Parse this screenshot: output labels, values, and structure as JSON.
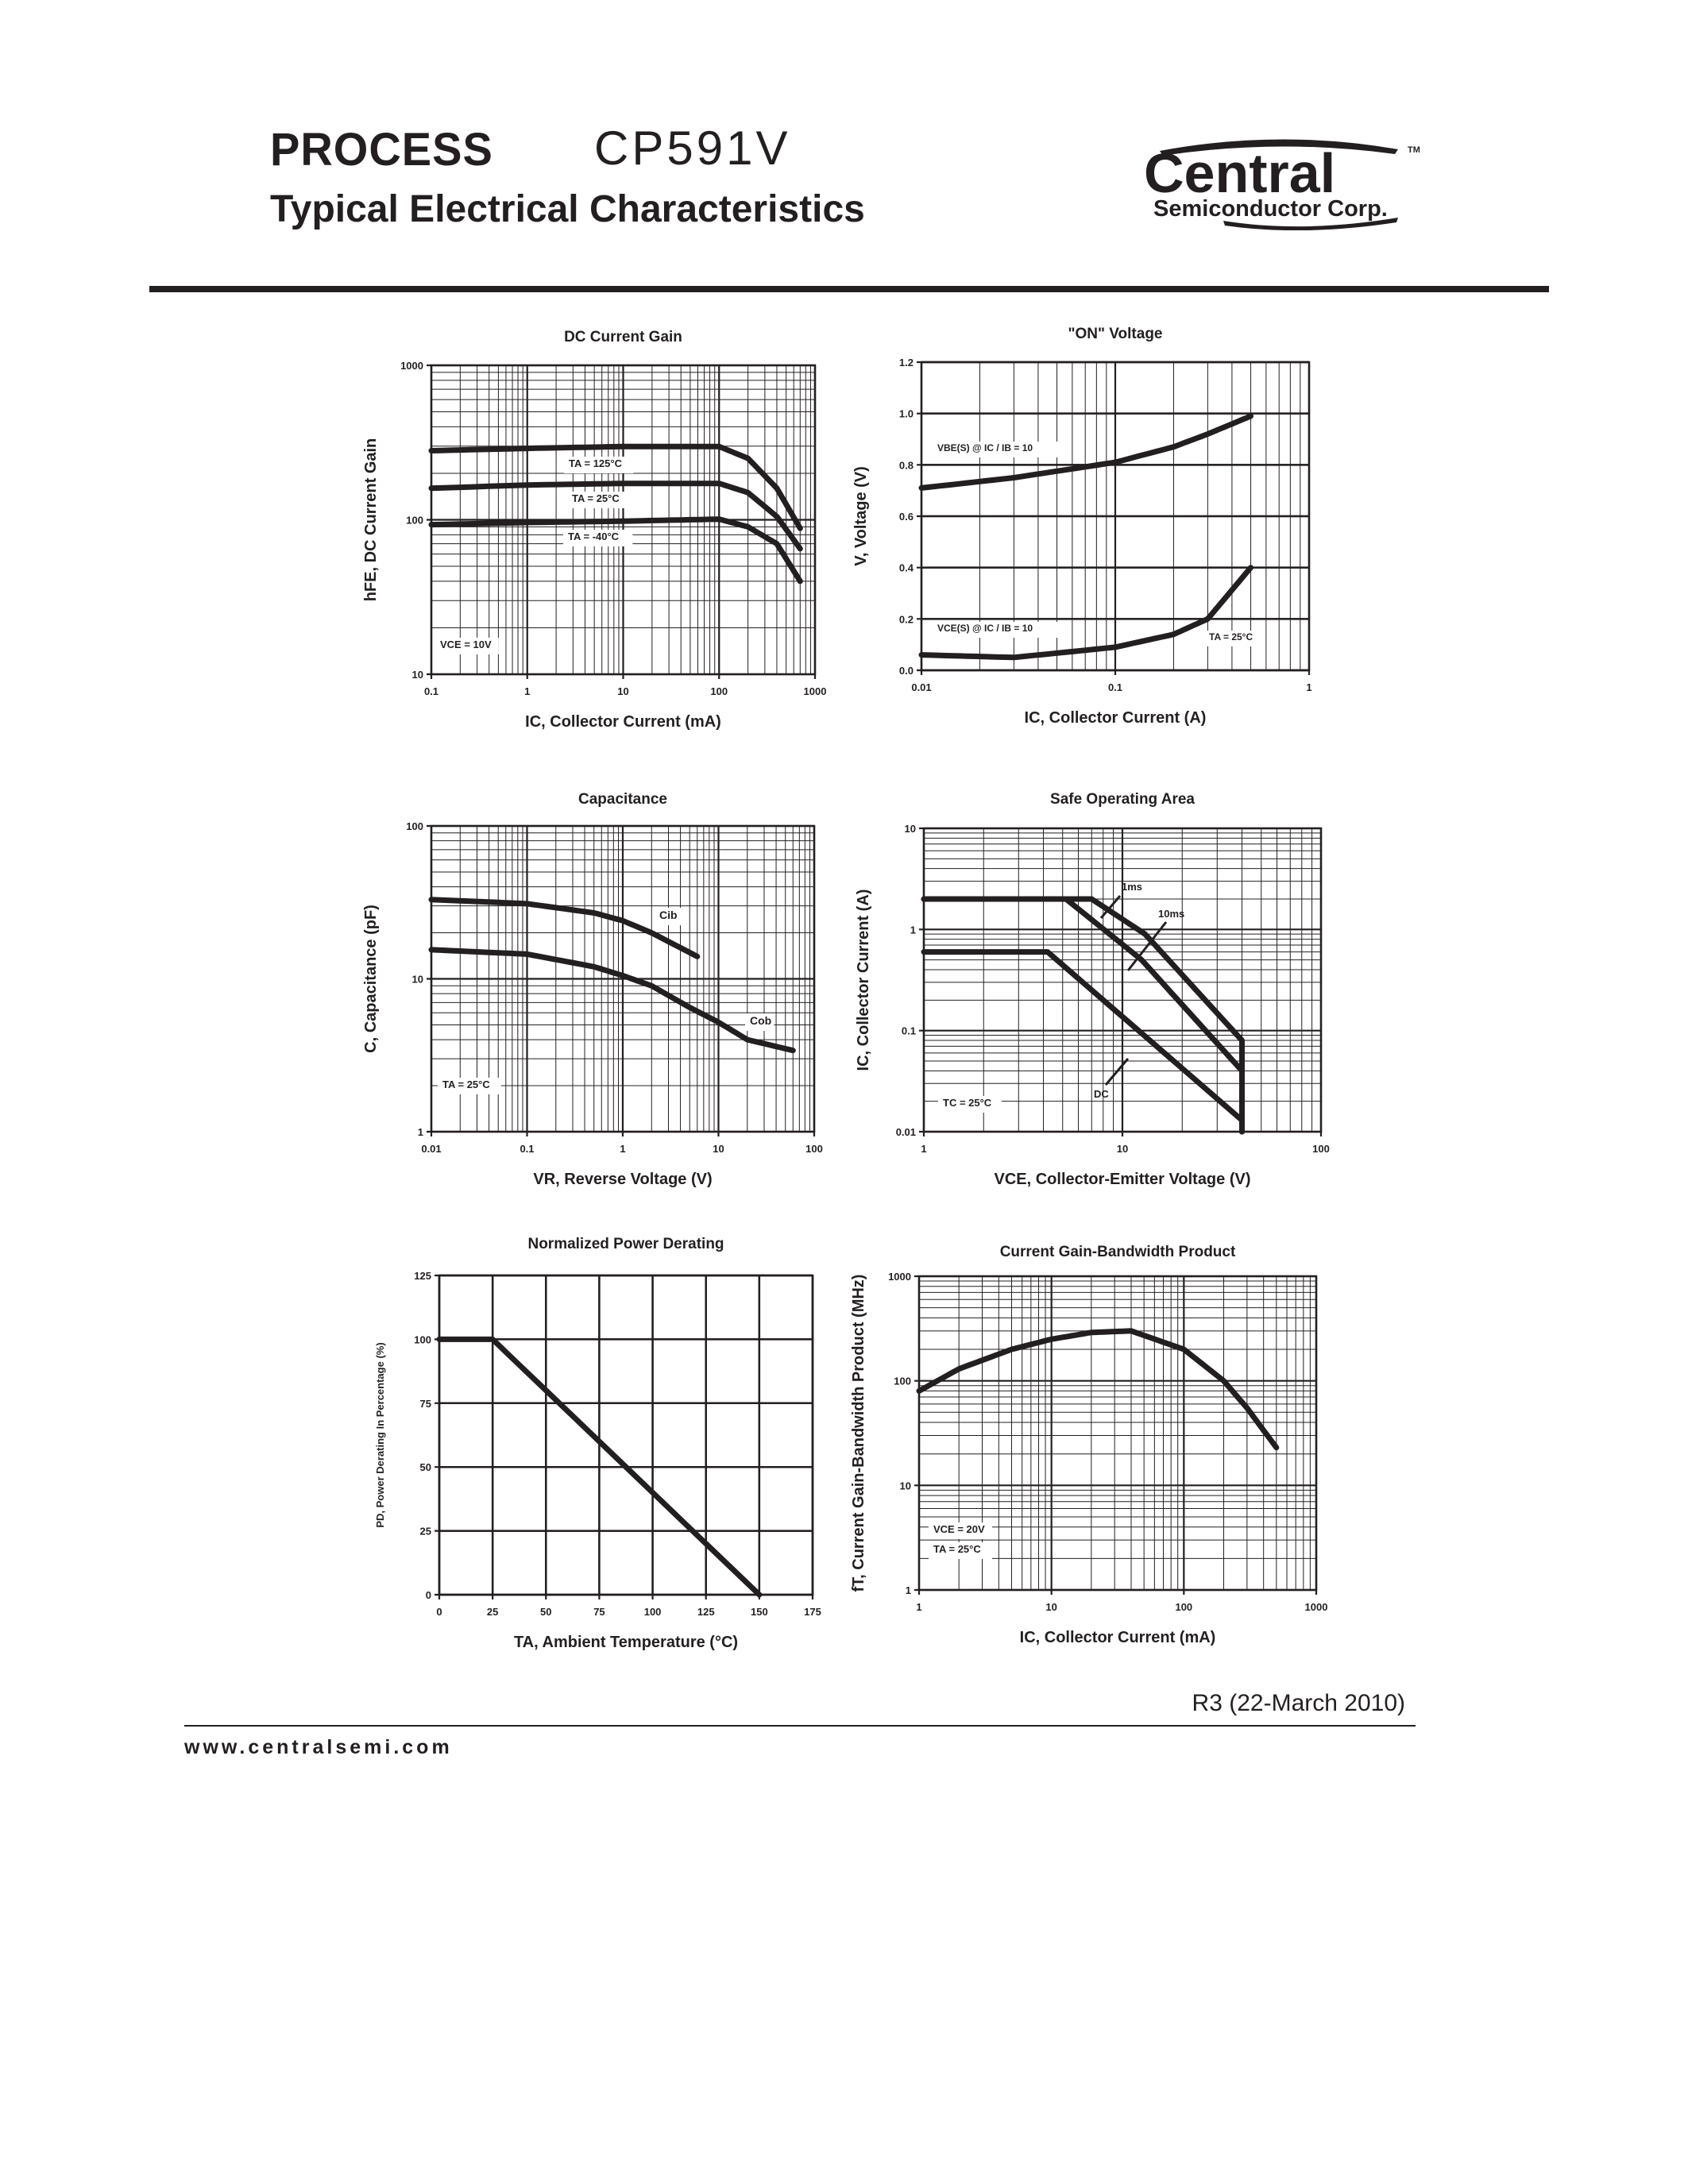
{
  "header": {
    "process_label": "PROCESS",
    "part_number": "CP591V",
    "subtitle": "Typical Electrical Characteristics",
    "logo": {
      "brand": "Central",
      "tm": "TM",
      "tagline": "Semiconductor Corp."
    }
  },
  "footer": {
    "revision": "R3 (22-March 2010)",
    "website": "www.centralsemi.com"
  },
  "colors": {
    "ink": "#231f20",
    "background": "#ffffff"
  },
  "chart_data": [
    {
      "id": "dc_current_gain",
      "type": "line",
      "title": "DC Current Gain",
      "xlabel": "IC, Collector Current (mA)",
      "ylabel": "hFE, DC Current Gain",
      "xscale": "log",
      "yscale": "log",
      "xlim": [
        0.1,
        1000
      ],
      "ylim": [
        10,
        1000
      ],
      "xticks": [
        "0.1",
        "1",
        "10",
        "100",
        "1000"
      ],
      "yticks": [
        "10",
        "100",
        "1000"
      ],
      "grid": true,
      "annotations": [
        "VCE = 10V"
      ],
      "series": [
        {
          "name": "TA = 125°C",
          "x": [
            0.1,
            1,
            10,
            100,
            200,
            400,
            700
          ],
          "y": [
            280,
            290,
            298,
            298,
            250,
            160,
            88
          ]
        },
        {
          "name": "TA = 25°C",
          "x": [
            0.1,
            1,
            10,
            100,
            200,
            400,
            700
          ],
          "y": [
            160,
            168,
            172,
            172,
            150,
            105,
            65
          ]
        },
        {
          "name": "TA = -40°C",
          "x": [
            0.1,
            1,
            10,
            100,
            200,
            400,
            700
          ],
          "y": [
            93,
            96,
            98,
            101,
            90,
            70,
            40
          ]
        }
      ]
    },
    {
      "id": "on_voltage",
      "type": "line",
      "title": "\"ON\" Voltage",
      "xlabel": "IC, Collector Current (A)",
      "ylabel": "V, Voltage (V)",
      "xscale": "log",
      "yscale": "linear",
      "xlim": [
        0.01,
        1
      ],
      "ylim": [
        0.0,
        1.2
      ],
      "xticks": [
        "0.01",
        "0.1",
        "1"
      ],
      "yticks": [
        "0.0",
        "0.2",
        "0.4",
        "0.6",
        "0.8",
        "1.0",
        "1.2"
      ],
      "grid": true,
      "annotations": [
        "TA = 25°C"
      ],
      "series": [
        {
          "name": "VBE(S) @ IC / IB = 10",
          "x": [
            0.01,
            0.03,
            0.1,
            0.2,
            0.3,
            0.5
          ],
          "y": [
            0.71,
            0.75,
            0.81,
            0.87,
            0.92,
            0.99
          ]
        },
        {
          "name": "VCE(S) @ IC / IB = 10",
          "x": [
            0.01,
            0.03,
            0.1,
            0.2,
            0.3,
            0.5
          ],
          "y": [
            0.06,
            0.05,
            0.09,
            0.14,
            0.2,
            0.4
          ]
        }
      ]
    },
    {
      "id": "capacitance",
      "type": "line",
      "title": "Capacitance",
      "xlabel": "VR, Reverse Voltage (V)",
      "ylabel": "C, Capacitance (pF)",
      "xscale": "log",
      "yscale": "log",
      "xlim": [
        0.01,
        100
      ],
      "ylim": [
        1,
        100
      ],
      "xticks": [
        "0.01",
        "0.1",
        "1",
        "10",
        "100"
      ],
      "yticks": [
        "1",
        "10",
        "100"
      ],
      "grid": true,
      "annotations": [
        "TA = 25°C"
      ],
      "series": [
        {
          "name": "Cib",
          "x": [
            0.01,
            0.1,
            0.5,
            1,
            2,
            6
          ],
          "y": [
            33,
            31,
            27,
            24,
            20,
            14
          ]
        },
        {
          "name": "Cob",
          "x": [
            0.01,
            0.1,
            0.5,
            1,
            2,
            5,
            10,
            20,
            60
          ],
          "y": [
            15.5,
            14.5,
            12,
            10.5,
            9,
            6.5,
            5.2,
            4,
            3.4
          ]
        }
      ]
    },
    {
      "id": "safe_operating_area",
      "type": "line",
      "title": "Safe Operating Area",
      "xlabel": "VCE, Collector-Emitter Voltage (V)",
      "ylabel": "IC, Collector Current (A)",
      "xscale": "log",
      "yscale": "log",
      "xlim": [
        1,
        100
      ],
      "ylim": [
        0.01,
        10
      ],
      "xticks": [
        "1",
        "10",
        "100"
      ],
      "yticks": [
        "0.01",
        "0.1",
        "1",
        "10"
      ],
      "grid": true,
      "annotations": [
        "TC = 25°C",
        "1ms",
        "10ms",
        "DC"
      ],
      "series": [
        {
          "name": "1ms",
          "x": [
            1,
            7,
            13,
            40,
            40
          ],
          "y": [
            2,
            2,
            0.9,
            0.08,
            0.01
          ]
        },
        {
          "name": "10ms",
          "x": [
            1,
            5.2,
            12.5,
            40,
            40
          ],
          "y": [
            2,
            2,
            0.5,
            0.04,
            0.01
          ]
        },
        {
          "name": "DC",
          "x": [
            1,
            4.2,
            40,
            40
          ],
          "y": [
            0.6,
            0.6,
            0.013,
            0.01
          ]
        }
      ]
    },
    {
      "id": "power_derating",
      "type": "line",
      "title": "Normalized Power Derating",
      "xlabel": "TA, Ambient Temperature (°C)",
      "ylabel": "PD, Power Derating In Percentage (%)",
      "xscale": "linear",
      "yscale": "linear",
      "xlim": [
        0,
        175
      ],
      "ylim": [
        0,
        125
      ],
      "xticks": [
        "0",
        "25",
        "50",
        "75",
        "100",
        "125",
        "150",
        "175"
      ],
      "yticks": [
        "0",
        "25",
        "50",
        "75",
        "100",
        "125"
      ],
      "grid": true,
      "series": [
        {
          "name": "PD",
          "x": [
            0,
            25,
            150
          ],
          "y": [
            100,
            100,
            0
          ]
        }
      ]
    },
    {
      "id": "gain_bandwidth",
      "type": "line",
      "title": "Current Gain-Bandwidth Product",
      "xlabel": "IC, Collector Current (mA)",
      "ylabel": "fT, Current Gain-Bandwidth Product (MHz)",
      "xscale": "log",
      "yscale": "log",
      "xlim": [
        1,
        1000
      ],
      "ylim": [
        1,
        1000
      ],
      "xticks": [
        "1",
        "10",
        "100",
        "1000"
      ],
      "yticks": [
        "1",
        "10",
        "100",
        "1000"
      ],
      "grid": true,
      "annotations": [
        "VCE = 20V",
        "TA = 25°C"
      ],
      "series": [
        {
          "name": "fT",
          "x": [
            1,
            2,
            5,
            10,
            20,
            40,
            100,
            200,
            300,
            500
          ],
          "y": [
            80,
            130,
            200,
            250,
            290,
            300,
            200,
            100,
            55,
            23
          ]
        }
      ]
    }
  ]
}
